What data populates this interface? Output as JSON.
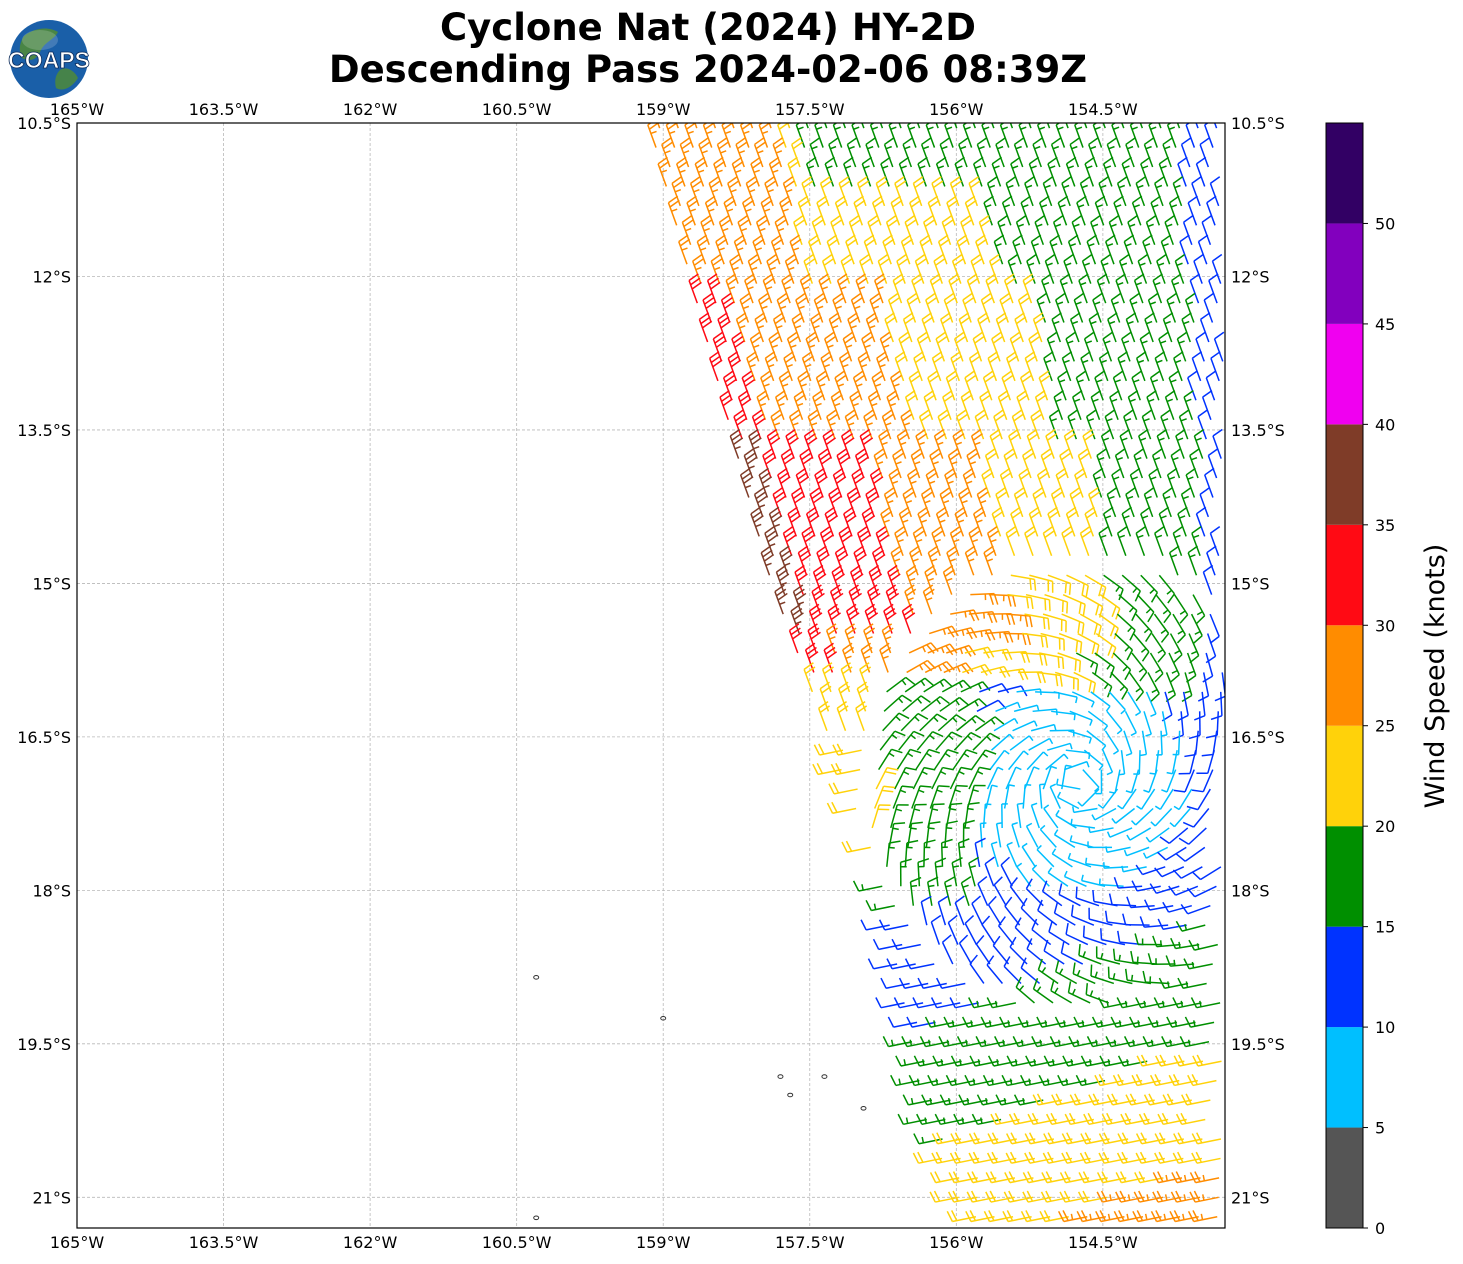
{
  "title": {
    "line1": "Cyclone Nat (2024) HY-2D",
    "line2": "Descending Pass 2024-02-06 08:39Z"
  },
  "logo": {
    "text": "COAPS",
    "icon": "globe-icon"
  },
  "map": {
    "lon_range": [
      -165,
      -153.25
    ],
    "lat_range": [
      -21.3,
      -10.5
    ],
    "gridlines": true,
    "top_ticks": [
      "165°W",
      "163.5°W",
      "162°W",
      "160.5°W",
      "159°W",
      "157.5°W",
      "156°W",
      "154.5°W"
    ],
    "bottom_ticks": [
      "165°W",
      "163.5°W",
      "162°W",
      "160.5°W",
      "159°W",
      "157.5°W",
      "156°W",
      "154.5°W"
    ],
    "lon_values": [
      -165,
      -163.5,
      -162,
      -160.5,
      -159,
      -157.5,
      -156,
      -154.5
    ],
    "left_ticks": [
      "10.5°S",
      "12°S",
      "13.5°S",
      "15°S",
      "16.5°S",
      "18°S",
      "19.5°S",
      "21°S"
    ],
    "right_ticks": [
      "10.5°S",
      "12°S",
      "13.5°S",
      "15°S",
      "16.5°S",
      "18°S",
      "19.5°S",
      "21°S"
    ],
    "lat_values": [
      -10.5,
      -12,
      -13.5,
      -15,
      -16.5,
      -18,
      -19.5,
      -21
    ],
    "islands": [
      {
        "lon": -160.3,
        "lat": -18.85
      },
      {
        "lon": -159.0,
        "lat": -19.25
      },
      {
        "lon": -157.8,
        "lat": -19.82
      },
      {
        "lon": -157.7,
        "lat": -20.0
      },
      {
        "lon": -157.35,
        "lat": -19.82
      },
      {
        "lon": -156.95,
        "lat": -20.13
      },
      {
        "lon": -160.3,
        "lat": -21.2
      }
    ]
  },
  "wind": {
    "swath_left_edge": [
      [
        -159.1,
        -10.5
      ],
      [
        -157.85,
        -15.0
      ],
      [
        -156.75,
        -17.8
      ],
      [
        -156.25,
        -20.3
      ],
      [
        -155.8,
        -21.3
      ]
    ],
    "swath_right_lon": -153.25,
    "center": {
      "lon": -154.75,
      "lat": -16.95
    },
    "units": "knots"
  },
  "colorbar": {
    "label": "Wind Speed (knots)",
    "ticks": [
      "0",
      "5",
      "10",
      "15",
      "20",
      "25",
      "30",
      "35",
      "40",
      "45",
      "50"
    ],
    "range": [
      0,
      55
    ],
    "colors": [
      "#555555",
      "#00bfff",
      "#0033ff",
      "#008f00",
      "#ffd20a",
      "#ff8c00",
      "#ff0a14",
      "#7f3c28",
      "#f000f0",
      "#8200be",
      "#320064"
    ]
  }
}
